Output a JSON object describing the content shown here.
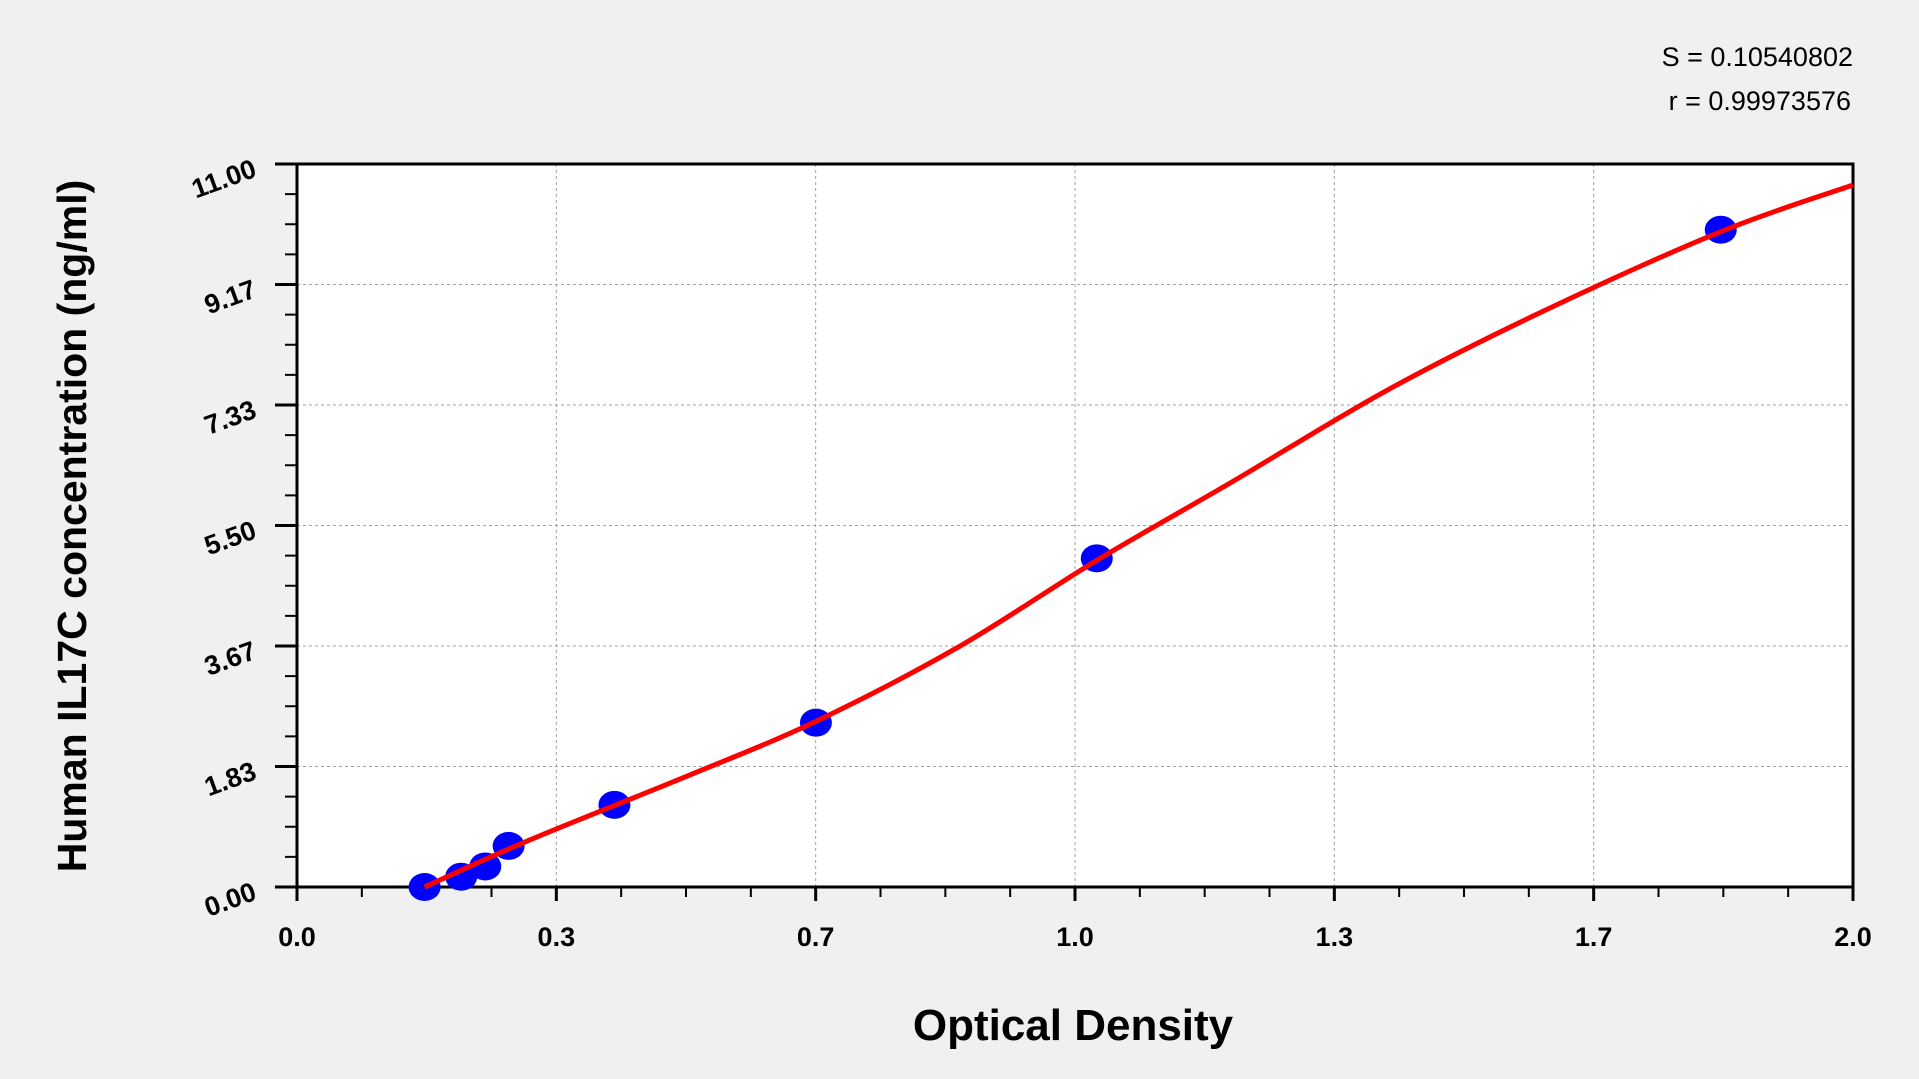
{
  "chart_data": {
    "type": "scatter",
    "xlabel": "Optical Density",
    "ylabel": "Human IL17C concentration (ng/ml)",
    "xlim": [
      0,
      2.0
    ],
    "ylim": [
      0,
      11.0
    ],
    "x_tick_labels": [
      "0.0",
      "0.3",
      "0.7",
      "1.0",
      "1.3",
      "1.7",
      "2.0"
    ],
    "y_tick_labels": [
      "0.00",
      "1.83",
      "3.67",
      "5.50",
      "7.33",
      "9.17",
      "11.00"
    ],
    "grid": true,
    "annotations": [
      "S = 0.10540802",
      "r = 0.99973576"
    ],
    "series": [
      {
        "type": "scatter",
        "color": "#0000ff",
        "points": [
          {
            "x": 0.164,
            "y": 0
          },
          {
            "x": 0.211,
            "y": 0.156
          },
          {
            "x": 0.242,
            "y": 0.3125
          },
          {
            "x": 0.272,
            "y": 0.625
          },
          {
            "x": 0.408,
            "y": 1.25
          },
          {
            "x": 0.667,
            "y": 2.5
          },
          {
            "x": 1.028,
            "y": 5.0
          },
          {
            "x": 1.83,
            "y": 10.0
          }
        ]
      },
      {
        "type": "line",
        "color": "#ff0000",
        "points": [
          {
            "x": 0.164,
            "y": 0
          },
          {
            "x": 0.3,
            "y": 0.72
          },
          {
            "x": 0.5,
            "y": 1.68
          },
          {
            "x": 0.667,
            "y": 2.52
          },
          {
            "x": 0.85,
            "y": 3.65
          },
          {
            "x": 1.028,
            "y": 4.97
          },
          {
            "x": 1.2,
            "y": 6.15
          },
          {
            "x": 1.4,
            "y": 7.55
          },
          {
            "x": 1.6,
            "y": 8.75
          },
          {
            "x": 1.83,
            "y": 9.97
          },
          {
            "x": 2.0,
            "y": 10.68
          }
        ]
      }
    ]
  }
}
